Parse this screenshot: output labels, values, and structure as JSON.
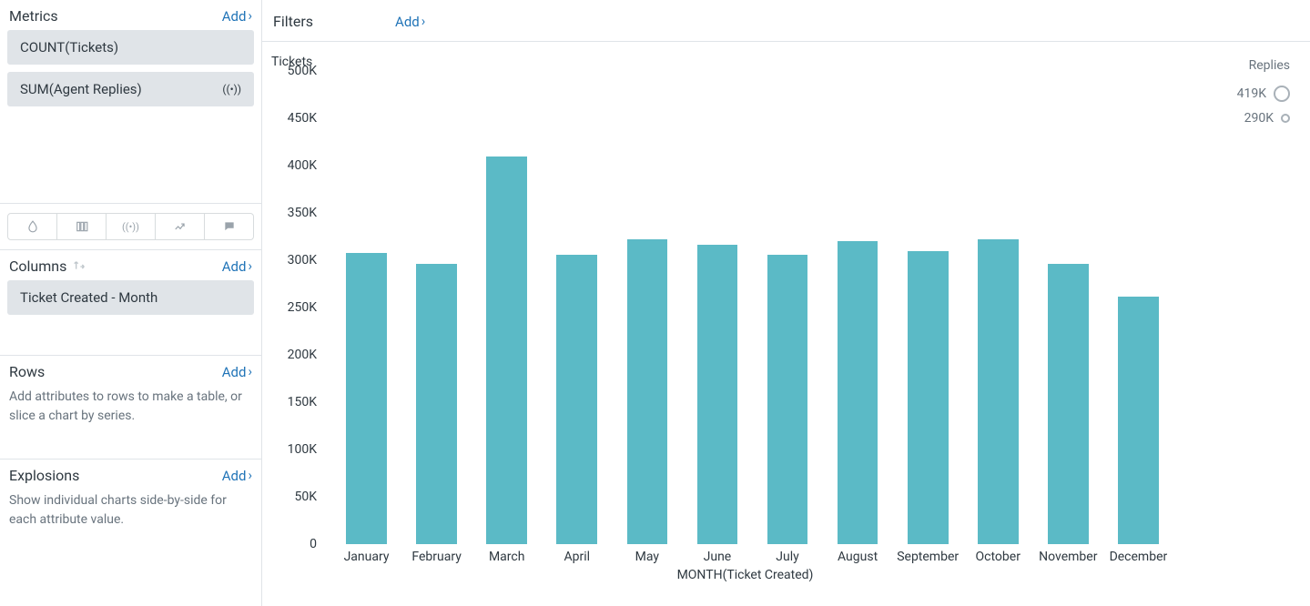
{
  "sidebar": {
    "metrics": {
      "title": "Metrics",
      "add_label": "Add",
      "items": [
        {
          "label": "COUNT(Tickets)",
          "has_icon": false
        },
        {
          "label": "SUM(Agent Replies)",
          "has_icon": true
        }
      ]
    },
    "columns": {
      "title": "Columns",
      "add_label": "Add",
      "items": [
        {
          "label": "Ticket Created - Month"
        }
      ]
    },
    "rows": {
      "title": "Rows",
      "add_label": "Add",
      "hint": "Add attributes to rows to make a table, or slice a chart by series."
    },
    "explosions": {
      "title": "Explosions",
      "add_label": "Add",
      "hint": "Show individual charts side-by-side for each attribute value."
    }
  },
  "filters": {
    "title": "Filters",
    "add_label": "Add"
  },
  "chart": {
    "type": "bar",
    "y_title": "Tickets",
    "x_title": "MONTH(Ticket Created)",
    "bar_color": "#5bbac6",
    "background_color": "#ffffff",
    "y_min": 0,
    "y_max": 500000,
    "y_tick_step": 50000,
    "y_ticks": [
      "500K",
      "450K",
      "400K",
      "350K",
      "300K",
      "250K",
      "200K",
      "150K",
      "100K",
      "50K",
      "0"
    ],
    "categories": [
      "January",
      "February",
      "March",
      "April",
      "May",
      "June",
      "July",
      "August",
      "September",
      "October",
      "November",
      "December"
    ],
    "values": [
      308000,
      296000,
      410000,
      306000,
      322000,
      316000,
      306000,
      320000,
      310000,
      322000,
      296000,
      262000
    ]
  },
  "legend": {
    "title": "Replies",
    "items": [
      {
        "label": "419K",
        "size": 18
      },
      {
        "label": "290K",
        "size": 10
      }
    ],
    "circle_border_color": "#a9b1b8"
  }
}
